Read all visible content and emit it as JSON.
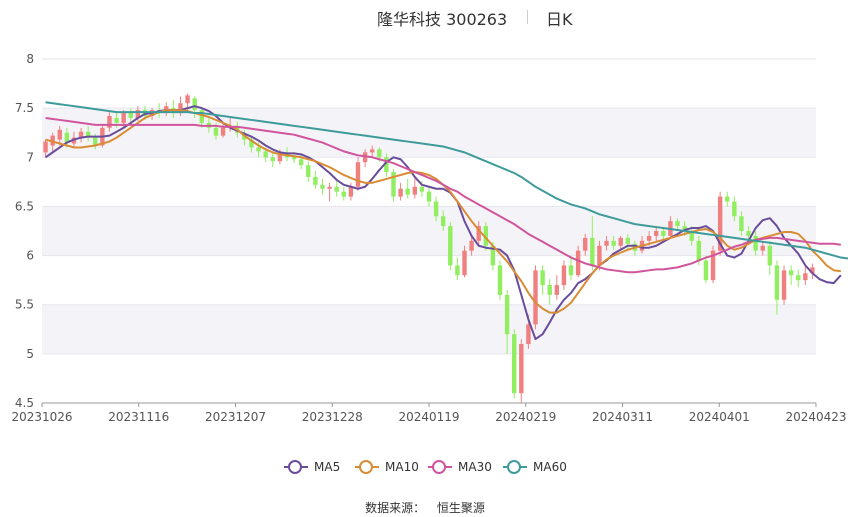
{
  "header": {
    "title": "隆华科技 300263",
    "period": "日K"
  },
  "source": {
    "label": "数据来源：",
    "value": "恒生聚源"
  },
  "chart_data": {
    "type": "candlestick",
    "x_ticks": [
      "20231026",
      "20231116",
      "20231207",
      "20231228",
      "20240119",
      "20240219",
      "20240311",
      "20240401",
      "20240423"
    ],
    "y_ticks": [
      "4.5",
      "5",
      "5.5",
      "6",
      "6.5",
      "7",
      "7.5",
      "8"
    ],
    "ylim": [
      4.5,
      8
    ],
    "colors": {
      "up": "#f08080",
      "down": "#90ee60"
    },
    "candles": [
      [
        7.05,
        7.16,
        7.18,
        7.0
      ],
      [
        7.12,
        7.22,
        7.25,
        7.06
      ],
      [
        7.18,
        7.28,
        7.32,
        7.12
      ],
      [
        7.25,
        7.15,
        7.3,
        7.1
      ],
      [
        7.14,
        7.2,
        7.26,
        7.09
      ],
      [
        7.2,
        7.26,
        7.3,
        7.15
      ],
      [
        7.26,
        7.2,
        7.32,
        7.16
      ],
      [
        7.2,
        7.12,
        7.24,
        7.08
      ],
      [
        7.12,
        7.3,
        7.34,
        7.1
      ],
      [
        7.3,
        7.42,
        7.46,
        7.26
      ],
      [
        7.4,
        7.35,
        7.46,
        7.3
      ],
      [
        7.35,
        7.45,
        7.48,
        7.3
      ],
      [
        7.45,
        7.4,
        7.5,
        7.36
      ],
      [
        7.4,
        7.48,
        7.52,
        7.37
      ],
      [
        7.48,
        7.42,
        7.52,
        7.38
      ],
      [
        7.42,
        7.48,
        7.5,
        7.38
      ],
      [
        7.48,
        7.45,
        7.55,
        7.4
      ],
      [
        7.45,
        7.52,
        7.56,
        7.42
      ],
      [
        7.5,
        7.45,
        7.58,
        7.4
      ],
      [
        7.45,
        7.55,
        7.62,
        7.42
      ],
      [
        7.55,
        7.63,
        7.65,
        7.45
      ],
      [
        7.6,
        7.48,
        7.62,
        7.4
      ],
      [
        7.48,
        7.35,
        7.5,
        7.3
      ],
      [
        7.35,
        7.3,
        7.4,
        7.25
      ],
      [
        7.3,
        7.22,
        7.35,
        7.18
      ],
      [
        7.22,
        7.3,
        7.34,
        7.2
      ],
      [
        7.3,
        7.32,
        7.4,
        7.26
      ],
      [
        7.32,
        7.25,
        7.36,
        7.2
      ],
      [
        7.25,
        7.18,
        7.28,
        7.12
      ],
      [
        7.18,
        7.1,
        7.22,
        7.05
      ],
      [
        7.1,
        7.06,
        7.15,
        7.0
      ],
      [
        7.06,
        7.0,
        7.1,
        6.95
      ],
      [
        7.0,
        6.96,
        7.06,
        6.9
      ],
      [
        6.96,
        7.04,
        7.08,
        6.93
      ],
      [
        7.04,
        7.0,
        7.1,
        6.96
      ],
      [
        7.0,
        6.98,
        7.05,
        6.94
      ],
      [
        6.98,
        6.92,
        7.02,
        6.88
      ],
      [
        6.92,
        6.8,
        6.96,
        6.75
      ],
      [
        6.8,
        6.72,
        6.86,
        6.68
      ],
      [
        6.72,
        6.68,
        6.78,
        6.62
      ],
      [
        6.68,
        6.7,
        6.74,
        6.55
      ],
      [
        6.7,
        6.65,
        6.76,
        6.6
      ],
      [
        6.65,
        6.6,
        6.7,
        6.56
      ],
      [
        6.6,
        6.7,
        6.74,
        6.56
      ],
      [
        6.7,
        6.95,
        7.0,
        6.66
      ],
      [
        6.95,
        7.05,
        7.08,
        6.9
      ],
      [
        7.05,
        7.08,
        7.12,
        7.0
      ],
      [
        7.08,
        7.0,
        7.1,
        6.95
      ],
      [
        7.0,
        6.85,
        7.04,
        6.8
      ],
      [
        6.85,
        6.6,
        6.88,
        6.55
      ],
      [
        6.6,
        6.68,
        6.74,
        6.56
      ],
      [
        6.68,
        6.62,
        6.78,
        6.58
      ],
      [
        6.62,
        6.7,
        6.8,
        6.58
      ],
      [
        6.7,
        6.65,
        6.76,
        6.6
      ],
      [
        6.65,
        6.55,
        6.7,
        6.5
      ],
      [
        6.55,
        6.4,
        6.6,
        6.35
      ],
      [
        6.4,
        6.3,
        6.46,
        6.25
      ],
      [
        6.3,
        5.9,
        6.34,
        5.85
      ],
      [
        5.9,
        5.8,
        5.98,
        5.75
      ],
      [
        5.8,
        6.05,
        6.1,
        5.78
      ],
      [
        6.05,
        6.15,
        6.2,
        6.0
      ],
      [
        6.15,
        6.3,
        6.35,
        6.1
      ],
      [
        6.3,
        6.1,
        6.34,
        6.05
      ],
      [
        6.1,
        5.9,
        6.14,
        5.85
      ],
      [
        5.9,
        5.6,
        5.95,
        5.55
      ],
      [
        5.6,
        5.2,
        5.65,
        5.0
      ],
      [
        5.2,
        4.6,
        5.25,
        4.55
      ],
      [
        4.6,
        5.1,
        5.15,
        4.5
      ],
      [
        5.1,
        5.3,
        5.4,
        5.05
      ],
      [
        5.3,
        5.85,
        5.9,
        5.25
      ],
      [
        5.85,
        5.7,
        5.9,
        5.6
      ],
      [
        5.7,
        5.6,
        5.76,
        5.5
      ],
      [
        5.6,
        5.7,
        5.8,
        5.55
      ],
      [
        5.7,
        5.9,
        5.95,
        5.65
      ],
      [
        5.9,
        5.8,
        6.0,
        5.75
      ],
      [
        5.8,
        6.05,
        6.1,
        5.78
      ],
      [
        6.05,
        6.18,
        6.22,
        6.0
      ],
      [
        6.18,
        5.9,
        6.4,
        5.85
      ],
      [
        5.9,
        6.1,
        6.15,
        5.85
      ],
      [
        6.1,
        6.15,
        6.2,
        6.05
      ],
      [
        6.15,
        6.1,
        6.2,
        6.06
      ],
      [
        6.1,
        6.18,
        6.2,
        6.05
      ],
      [
        6.18,
        6.12,
        6.22,
        6.06
      ],
      [
        6.12,
        6.05,
        6.15,
        6.0
      ],
      [
        6.05,
        6.15,
        6.2,
        6.02
      ],
      [
        6.15,
        6.2,
        6.25,
        6.1
      ],
      [
        6.2,
        6.25,
        6.3,
        6.15
      ],
      [
        6.25,
        6.2,
        6.28,
        6.15
      ],
      [
        6.2,
        6.35,
        6.4,
        6.18
      ],
      [
        6.35,
        6.3,
        6.38,
        6.25
      ],
      [
        6.3,
        6.25,
        6.35,
        6.2
      ],
      [
        6.25,
        6.15,
        6.3,
        6.1
      ],
      [
        6.15,
        5.95,
        6.2,
        5.9
      ],
      [
        5.95,
        5.75,
        6.0,
        5.72
      ],
      [
        5.75,
        6.05,
        6.1,
        5.72
      ],
      [
        6.05,
        6.6,
        6.65,
        6.0
      ],
      [
        6.6,
        6.55,
        6.65,
        6.5
      ],
      [
        6.55,
        6.4,
        6.6,
        6.35
      ],
      [
        6.4,
        6.25,
        6.45,
        6.2
      ],
      [
        6.25,
        6.2,
        6.3,
        6.15
      ],
      [
        6.2,
        6.05,
        6.25,
        6.0
      ],
      [
        6.05,
        6.1,
        6.15,
        6.0
      ],
      [
        6.1,
        5.9,
        6.15,
        5.8
      ],
      [
        5.9,
        5.55,
        5.95,
        5.4
      ],
      [
        5.55,
        5.85,
        5.9,
        5.5
      ],
      [
        5.85,
        5.8,
        5.9,
        5.7
      ],
      [
        5.8,
        5.75,
        5.86,
        5.68
      ],
      [
        5.75,
        5.82,
        5.9,
        5.7
      ],
      [
        5.82,
        5.88,
        5.92,
        5.76
      ]
    ],
    "series": [
      {
        "name": "MA5",
        "color": "#6a4c9c",
        "values": [
          7.0,
          7.05,
          7.1,
          7.15,
          7.18,
          7.2,
          7.21,
          7.21,
          7.21,
          7.22,
          7.26,
          7.3,
          7.35,
          7.4,
          7.44,
          7.45,
          7.47,
          7.48,
          7.48,
          7.48,
          7.5,
          7.52,
          7.5,
          7.47,
          7.42,
          7.35,
          7.3,
          7.27,
          7.24,
          7.21,
          7.17,
          7.12,
          7.08,
          7.05,
          7.04,
          7.04,
          7.03,
          7.0,
          6.96,
          6.9,
          6.84,
          6.77,
          6.72,
          6.7,
          6.68,
          6.7,
          6.78,
          6.87,
          6.95,
          7.0,
          6.98,
          6.9,
          6.8,
          6.72,
          6.7,
          6.68,
          6.68,
          6.64,
          6.55,
          6.35,
          6.2,
          6.1,
          6.08,
          6.07,
          6.06,
          6.0,
          5.85,
          5.6,
          5.35,
          5.15,
          5.2,
          5.32,
          5.45,
          5.55,
          5.62,
          5.72,
          5.76,
          5.82,
          5.9,
          5.95,
          6.02,
          6.06,
          6.1,
          6.1,
          6.08,
          6.08,
          6.1,
          6.14,
          6.18,
          6.22,
          6.26,
          6.28,
          6.28,
          6.3,
          6.25,
          6.12,
          6.0,
          5.98,
          6.02,
          6.15,
          6.28,
          6.36,
          6.38,
          6.3,
          6.18,
          6.1,
          6.02,
          5.9,
          5.82,
          5.76,
          5.73,
          5.72,
          5.8
        ]
      },
      {
        "name": "MA10",
        "color": "#d98c34",
        "values": [
          7.18,
          7.16,
          7.14,
          7.12,
          7.1,
          7.1,
          7.11,
          7.12,
          7.14,
          7.16,
          7.2,
          7.25,
          7.3,
          7.35,
          7.4,
          7.43,
          7.46,
          7.48,
          7.48,
          7.48,
          7.47,
          7.45,
          7.43,
          7.41,
          7.38,
          7.35,
          7.32,
          7.28,
          7.22,
          7.17,
          7.12,
          7.08,
          7.05,
          7.03,
          7.02,
          7.01,
          7.0,
          6.98,
          6.96,
          6.93,
          6.9,
          6.86,
          6.82,
          6.79,
          6.76,
          6.74,
          6.74,
          6.76,
          6.78,
          6.8,
          6.82,
          6.84,
          6.85,
          6.84,
          6.82,
          6.78,
          6.72,
          6.65,
          6.55,
          6.45,
          6.35,
          6.26,
          6.18,
          6.1,
          6.02,
          5.94,
          5.84,
          5.74,
          5.62,
          5.52,
          5.46,
          5.42,
          5.42,
          5.46,
          5.52,
          5.62,
          5.72,
          5.82,
          5.9,
          5.96,
          6.0,
          6.03,
          6.06,
          6.08,
          6.1,
          6.12,
          6.14,
          6.16,
          6.18,
          6.2,
          6.22,
          6.24,
          6.26,
          6.27,
          6.24,
          6.18,
          6.1,
          6.06,
          6.08,
          6.12,
          6.16,
          6.18,
          6.2,
          6.22,
          6.24,
          6.24,
          6.22,
          6.15,
          6.05,
          5.98,
          5.9,
          5.85,
          5.84
        ]
      },
      {
        "name": "MA30",
        "color": "#d0559c",
        "values": [
          7.4,
          7.39,
          7.38,
          7.37,
          7.36,
          7.35,
          7.34,
          7.33,
          7.33,
          7.33,
          7.33,
          7.33,
          7.33,
          7.33,
          7.33,
          7.33,
          7.33,
          7.33,
          7.33,
          7.33,
          7.33,
          7.33,
          7.32,
          7.32,
          7.32,
          7.31,
          7.31,
          7.31,
          7.3,
          7.29,
          7.28,
          7.27,
          7.26,
          7.25,
          7.24,
          7.23,
          7.21,
          7.19,
          7.17,
          7.15,
          7.12,
          7.09,
          7.06,
          7.04,
          7.02,
          7.01,
          7.0,
          6.98,
          6.96,
          6.94,
          6.91,
          6.88,
          6.85,
          6.82,
          6.79,
          6.76,
          6.72,
          6.68,
          6.65,
          6.6,
          6.56,
          6.52,
          6.48,
          6.44,
          6.4,
          6.36,
          6.32,
          6.27,
          6.22,
          6.18,
          6.14,
          6.1,
          6.06,
          6.02,
          5.98,
          5.95,
          5.92,
          5.9,
          5.88,
          5.86,
          5.85,
          5.84,
          5.83,
          5.83,
          5.84,
          5.85,
          5.86,
          5.86,
          5.87,
          5.88,
          5.9,
          5.92,
          5.95,
          5.98,
          6.0,
          6.03,
          6.06,
          6.09,
          6.11,
          6.14,
          6.16,
          6.17,
          6.18,
          6.18,
          6.17,
          6.16,
          6.15,
          6.14,
          6.13,
          6.12,
          6.12,
          6.12,
          6.11
        ]
      },
      {
        "name": "MA60",
        "color": "#3f9a9a",
        "values": [
          7.56,
          7.55,
          7.54,
          7.53,
          7.52,
          7.51,
          7.5,
          7.49,
          7.48,
          7.47,
          7.46,
          7.46,
          7.46,
          7.46,
          7.46,
          7.46,
          7.46,
          7.46,
          7.46,
          7.46,
          7.46,
          7.45,
          7.45,
          7.44,
          7.43,
          7.42,
          7.41,
          7.4,
          7.39,
          7.38,
          7.37,
          7.36,
          7.35,
          7.34,
          7.33,
          7.32,
          7.31,
          7.3,
          7.29,
          7.28,
          7.27,
          7.26,
          7.25,
          7.24,
          7.23,
          7.22,
          7.21,
          7.2,
          7.19,
          7.18,
          7.17,
          7.16,
          7.15,
          7.14,
          7.13,
          7.12,
          7.11,
          7.09,
          7.07,
          7.05,
          7.02,
          6.99,
          6.96,
          6.93,
          6.9,
          6.87,
          6.84,
          6.8,
          6.75,
          6.7,
          6.66,
          6.62,
          6.58,
          6.55,
          6.52,
          6.5,
          6.48,
          6.45,
          6.42,
          6.4,
          6.38,
          6.36,
          6.34,
          6.32,
          6.31,
          6.3,
          6.29,
          6.28,
          6.27,
          6.26,
          6.25,
          6.24,
          6.23,
          6.22,
          6.21,
          6.2,
          6.19,
          6.18,
          6.17,
          6.16,
          6.15,
          6.14,
          6.13,
          6.12,
          6.11,
          6.1,
          6.09,
          6.08,
          6.06,
          6.04,
          6.02,
          6.0,
          5.98,
          5.97
        ]
      }
    ]
  }
}
